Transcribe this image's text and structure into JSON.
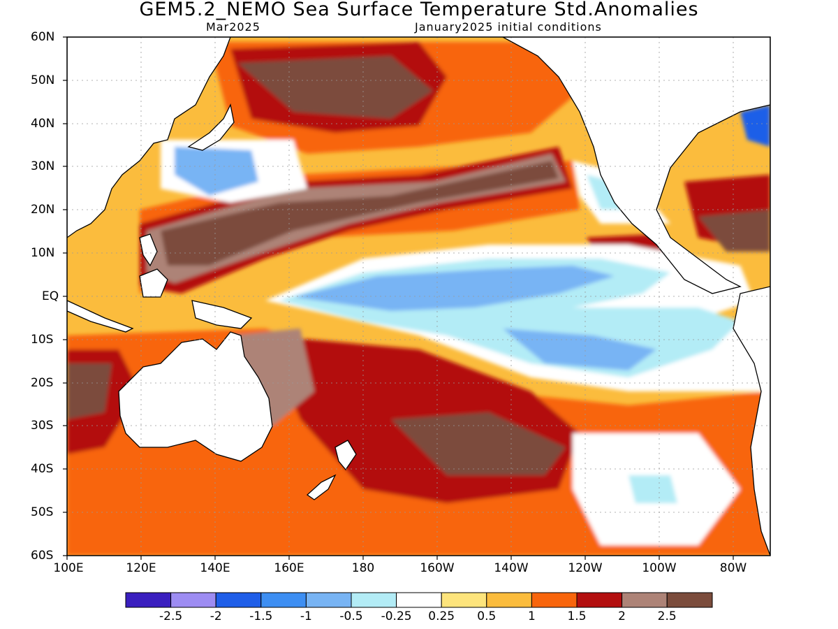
{
  "title": "GEM5.2_NEMO Sea Surface Temperature Std.Anomalies",
  "subtitle_left": "Mar2025",
  "subtitle_right": "January2025 initial conditions",
  "lat_labels": [
    "60N",
    "50N",
    "40N",
    "30N",
    "20N",
    "10N",
    "EQ",
    "10S",
    "20S",
    "30S",
    "40S",
    "50S",
    "60S"
  ],
  "lon_labels": [
    "100E",
    "120E",
    "140E",
    "160E",
    "180",
    "160W",
    "140W",
    "120W",
    "100W",
    "80W"
  ],
  "colorbar": {
    "labels": [
      "-2.5",
      "-2",
      "-1.5",
      "-1",
      "-0.5",
      "-0.25",
      "0.25",
      "0.5",
      "1",
      "1.5",
      "2",
      "2.5"
    ],
    "colors": [
      "#3a1fbf",
      "#9d8cf2",
      "#1f5ee8",
      "#3d8ef2",
      "#78b4f4",
      "#b3ecf6",
      "#ffffff",
      "#fde47c",
      "#fbbc3d",
      "#f8650c",
      "#b30f0f",
      "#ad8377",
      "#7b4c3c"
    ]
  },
  "map": {
    "lat_range": [
      -60,
      60
    ],
    "lon_range_east": [
      100,
      290
    ],
    "land_color": "#ffffff",
    "ocean_background": "#fbbc3d"
  }
}
